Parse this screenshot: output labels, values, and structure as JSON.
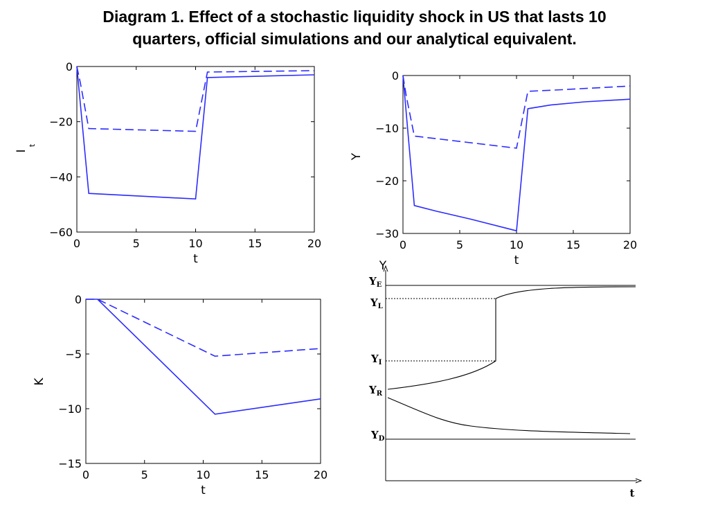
{
  "title": {
    "line1": "Diagram 1. Effect of a stochastic liquidity shock in US that lasts 10",
    "line2": "quarters, official simulations and our analytical equivalent."
  },
  "colors": {
    "series": "#2b2bff",
    "axis": "#000000",
    "diagram": "#000000"
  },
  "chart_data": [
    {
      "id": "I",
      "type": "line",
      "xlabel": "t",
      "ylabel": "I",
      "ylabel_sub": "t",
      "xlim": [
        0,
        20
      ],
      "ylim": [
        -60,
        0
      ],
      "xticks": [
        0,
        5,
        10,
        15,
        20
      ],
      "yticks": [
        0,
        -20,
        -40,
        -60
      ],
      "grid": false,
      "series": [
        {
          "style": "solid",
          "x": [
            0,
            1,
            10,
            11,
            20
          ],
          "y": [
            0,
            -46,
            -48,
            -4,
            -3
          ]
        },
        {
          "style": "dashed",
          "x": [
            0,
            0.3,
            1,
            10,
            11,
            20
          ],
          "y": [
            0,
            -6,
            -22.5,
            -23.5,
            -2,
            -1.5
          ]
        }
      ]
    },
    {
      "id": "Y",
      "type": "line",
      "xlabel": "t",
      "ylabel": "Y",
      "xlim": [
        0,
        20
      ],
      "ylim": [
        -30,
        0
      ],
      "xticks": [
        0,
        5,
        10,
        15,
        20
      ],
      "yticks": [
        0,
        -10,
        -20,
        -30
      ],
      "grid": false,
      "series": [
        {
          "style": "solid",
          "x": [
            0,
            1,
            3,
            6,
            10,
            11,
            13,
            16,
            20
          ],
          "y": [
            0,
            -24.7,
            -25.8,
            -27.3,
            -29.5,
            -6.3,
            -5.6,
            -5.0,
            -4.5
          ]
        },
        {
          "style": "dashed",
          "x": [
            0,
            0.3,
            1,
            10,
            11,
            14,
            20
          ],
          "y": [
            0,
            -4,
            -11.5,
            -13.8,
            -3.0,
            -2.7,
            -2.0
          ]
        }
      ]
    },
    {
      "id": "K",
      "type": "line",
      "xlabel": "t",
      "ylabel": "K",
      "xlim": [
        0,
        20
      ],
      "ylim": [
        -15,
        0
      ],
      "xticks": [
        0,
        5,
        10,
        15,
        20
      ],
      "yticks": [
        0,
        -5,
        -10,
        -15
      ],
      "grid": false,
      "series": [
        {
          "style": "solid",
          "x": [
            0,
            1,
            11,
            20
          ],
          "y": [
            0,
            0,
            -10.5,
            -9.1
          ]
        },
        {
          "style": "dashed",
          "x": [
            0,
            1,
            11,
            20
          ],
          "y": [
            0,
            0,
            -5.2,
            -4.5
          ]
        }
      ]
    }
  ],
  "diagram": {
    "y_axis_label": "Y",
    "x_axis_label": "t",
    "levels": [
      {
        "key": "E",
        "main": "Y",
        "sub": "E"
      },
      {
        "key": "L",
        "main": "Y",
        "sub": "L"
      },
      {
        "key": "I",
        "main": "Y",
        "sub": "I"
      },
      {
        "key": "R",
        "main": "Y",
        "sub": "R"
      },
      {
        "key": "D",
        "main": "Y",
        "sub": "D"
      }
    ]
  }
}
